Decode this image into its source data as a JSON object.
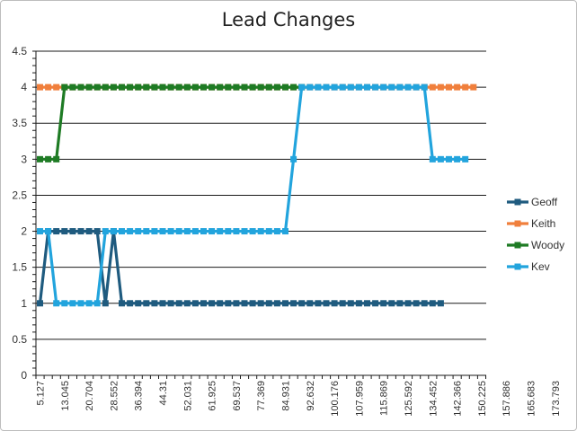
{
  "chart_data": {
    "type": "line",
    "title": "Lead Changes",
    "xlabel": "",
    "ylabel": "",
    "ylim": [
      0,
      4.5
    ],
    "yticks": [
      "0",
      "0.5",
      "1",
      "1.5",
      "2",
      "2.5",
      "3",
      "3.5",
      "4",
      "4.5"
    ],
    "grid": true,
    "legend_position": "right",
    "x_tick_labels": [
      "5.127",
      "13.045",
      "20.704",
      "28.552",
      "36.394",
      "44.31",
      "52.031",
      "61.925",
      "69.537",
      "77.369",
      "84.931",
      "92.632",
      "100.176",
      "107.959",
      "115.869",
      "125.592",
      "134.452",
      "142.366",
      "150.225",
      "157.886",
      "165.683",
      "173.793"
    ],
    "series": [
      {
        "name": "Geoff",
        "color": "#1f5b7f",
        "values": [
          1,
          2,
          2,
          2,
          2,
          2,
          2,
          2,
          1,
          2,
          1,
          1,
          1,
          1,
          1,
          1,
          1,
          1,
          1,
          1,
          1,
          1,
          1,
          1,
          1,
          1,
          1,
          1,
          1,
          1,
          1,
          1,
          1,
          1,
          1,
          1,
          1,
          1,
          1,
          1,
          1,
          1,
          1,
          1,
          1,
          1,
          1,
          1,
          1,
          1
        ]
      },
      {
        "name": "Keith",
        "color": "#f07f3c",
        "values": [
          4,
          4,
          4,
          4,
          4,
          4,
          4,
          4,
          4,
          4,
          4,
          4,
          4,
          4,
          4,
          4,
          4,
          4,
          4,
          4,
          4,
          4,
          4,
          4,
          4,
          4,
          4,
          4,
          4,
          4,
          4,
          4,
          4,
          4,
          4,
          4,
          4,
          4,
          4,
          4,
          4,
          4,
          4,
          4,
          4,
          4,
          4,
          4,
          4,
          4,
          4,
          4,
          4,
          4
        ]
      },
      {
        "name": "Woody",
        "color": "#1e7b24",
        "values": [
          3,
          3,
          3,
          4,
          4,
          4,
          4,
          4,
          4,
          4,
          4,
          4,
          4,
          4,
          4,
          4,
          4,
          4,
          4,
          4,
          4,
          4,
          4,
          4,
          4,
          4,
          4,
          4,
          4,
          4,
          4,
          4,
          4
        ]
      },
      {
        "name": "Kev",
        "color": "#22a4dd",
        "values": [
          2,
          2,
          1,
          1,
          1,
          1,
          1,
          1,
          2,
          2,
          2,
          2,
          2,
          2,
          2,
          2,
          2,
          2,
          2,
          2,
          2,
          2,
          2,
          2,
          2,
          2,
          2,
          2,
          2,
          2,
          2,
          3,
          4,
          4,
          4,
          4,
          4,
          4,
          4,
          4,
          4,
          4,
          4,
          4,
          4,
          4,
          4,
          4,
          3,
          3,
          3,
          3,
          3
        ]
      }
    ]
  }
}
